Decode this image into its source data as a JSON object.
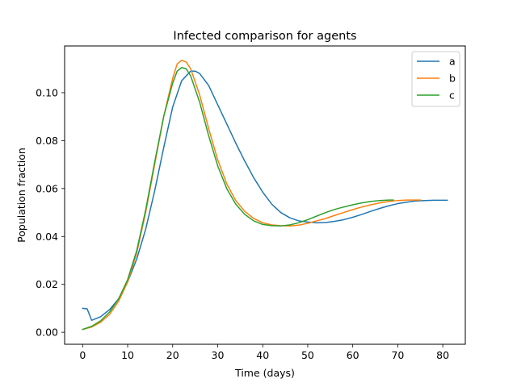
{
  "chart_data": {
    "type": "line",
    "title": "Infected comparison for agents",
    "xlabel": "Time (days)",
    "ylabel": "Population fraction",
    "xlim": [
      -4,
      85
    ],
    "ylim": [
      -0.005,
      0.1195
    ],
    "xticks": [
      0,
      10,
      20,
      30,
      40,
      50,
      60,
      70,
      80
    ],
    "xtick_labels": [
      "0",
      "10",
      "20",
      "30",
      "40",
      "50",
      "60",
      "70",
      "80"
    ],
    "yticks": [
      0.0,
      0.02,
      0.04,
      0.06,
      0.08,
      0.1
    ],
    "ytick_labels": [
      "0.00",
      "0.02",
      "0.04",
      "0.06",
      "0.08",
      "0.10"
    ],
    "grid": false,
    "legend_position": "top-right",
    "series": [
      {
        "name": "a",
        "color": "#1f77b4",
        "points": [
          [
            0,
            0.01
          ],
          [
            1,
            0.0098
          ],
          [
            2,
            0.005
          ],
          [
            4,
            0.0065
          ],
          [
            6,
            0.0095
          ],
          [
            8,
            0.014
          ],
          [
            10,
            0.021
          ],
          [
            12,
            0.0305
          ],
          [
            14,
            0.043
          ],
          [
            16,
            0.059
          ],
          [
            18,
            0.077
          ],
          [
            20,
            0.094
          ],
          [
            22,
            0.105
          ],
          [
            24,
            0.109
          ],
          [
            25,
            0.109
          ],
          [
            26,
            0.108
          ],
          [
            28,
            0.103
          ],
          [
            30,
            0.095
          ],
          [
            32,
            0.087
          ],
          [
            34,
            0.079
          ],
          [
            36,
            0.0715
          ],
          [
            38,
            0.0645
          ],
          [
            40,
            0.0585
          ],
          [
            42,
            0.0535
          ],
          [
            44,
            0.05
          ],
          [
            46,
            0.0478
          ],
          [
            48,
            0.0465
          ],
          [
            50,
            0.046
          ],
          [
            52,
            0.0457
          ],
          [
            54,
            0.0458
          ],
          [
            56,
            0.0463
          ],
          [
            58,
            0.047
          ],
          [
            60,
            0.048
          ],
          [
            62,
            0.0492
          ],
          [
            64,
            0.0505
          ],
          [
            66,
            0.0517
          ],
          [
            68,
            0.0528
          ],
          [
            70,
            0.0537
          ],
          [
            72,
            0.0543
          ],
          [
            74,
            0.0548
          ],
          [
            76,
            0.055
          ],
          [
            78,
            0.0551
          ],
          [
            81,
            0.0551
          ]
        ]
      },
      {
        "name": "b",
        "color": "#ff7f0e",
        "points": [
          [
            0,
            0.0012
          ],
          [
            2,
            0.0022
          ],
          [
            4,
            0.0042
          ],
          [
            6,
            0.0075
          ],
          [
            8,
            0.013
          ],
          [
            10,
            0.021
          ],
          [
            12,
            0.033
          ],
          [
            14,
            0.05
          ],
          [
            16,
            0.07
          ],
          [
            18,
            0.09
          ],
          [
            20,
            0.106
          ],
          [
            21,
            0.112
          ],
          [
            22,
            0.1135
          ],
          [
            23,
            0.1128
          ],
          [
            24,
            0.11
          ],
          [
            26,
            0.099
          ],
          [
            28,
            0.085
          ],
          [
            30,
            0.072
          ],
          [
            32,
            0.062
          ],
          [
            34,
            0.055
          ],
          [
            36,
            0.0505
          ],
          [
            38,
            0.0475
          ],
          [
            40,
            0.0457
          ],
          [
            42,
            0.0448
          ],
          [
            44,
            0.0445
          ],
          [
            46,
            0.0444
          ],
          [
            48,
            0.0447
          ],
          [
            50,
            0.0455
          ],
          [
            52,
            0.0465
          ],
          [
            54,
            0.0475
          ],
          [
            56,
            0.0488
          ],
          [
            58,
            0.05
          ],
          [
            60,
            0.0512
          ],
          [
            62,
            0.0523
          ],
          [
            64,
            0.0532
          ],
          [
            66,
            0.054
          ],
          [
            68,
            0.0546
          ],
          [
            70,
            0.055
          ],
          [
            72,
            0.0552
          ],
          [
            75,
            0.0552
          ]
        ]
      },
      {
        "name": "c",
        "color": "#2ca02c",
        "points": [
          [
            0,
            0.0012
          ],
          [
            2,
            0.0025
          ],
          [
            4,
            0.0048
          ],
          [
            6,
            0.0085
          ],
          [
            8,
            0.014
          ],
          [
            10,
            0.022
          ],
          [
            12,
            0.034
          ],
          [
            14,
            0.051
          ],
          [
            16,
            0.071
          ],
          [
            18,
            0.09
          ],
          [
            20,
            0.104
          ],
          [
            21,
            0.109
          ],
          [
            22,
            0.1105
          ],
          [
            23,
            0.11
          ],
          [
            24,
            0.107
          ],
          [
            26,
            0.096
          ],
          [
            28,
            0.082
          ],
          [
            30,
            0.0695
          ],
          [
            32,
            0.06
          ],
          [
            34,
            0.0535
          ],
          [
            36,
            0.0492
          ],
          [
            38,
            0.0465
          ],
          [
            40,
            0.045
          ],
          [
            42,
            0.0445
          ],
          [
            44,
            0.0444
          ],
          [
            46,
            0.0448
          ],
          [
            48,
            0.0457
          ],
          [
            50,
            0.047
          ],
          [
            52,
            0.0485
          ],
          [
            54,
            0.05
          ],
          [
            56,
            0.0513
          ],
          [
            58,
            0.0523
          ],
          [
            60,
            0.0532
          ],
          [
            62,
            0.054
          ],
          [
            64,
            0.0546
          ],
          [
            66,
            0.055
          ],
          [
            68,
            0.0552
          ],
          [
            69,
            0.0552
          ]
        ]
      }
    ]
  }
}
